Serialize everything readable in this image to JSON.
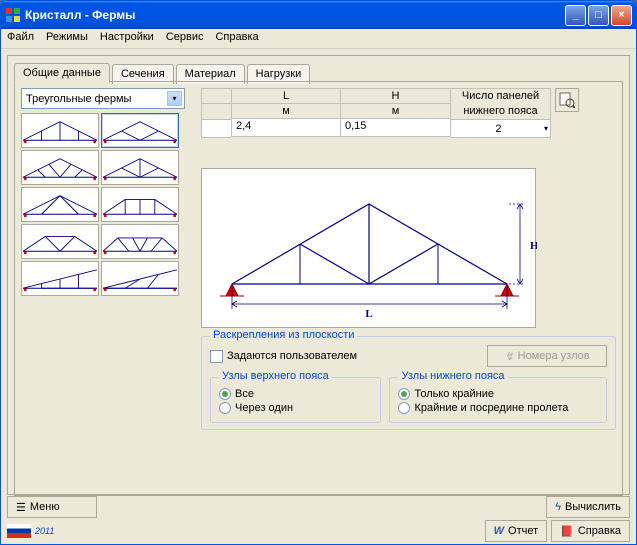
{
  "window": {
    "title": "Кристалл - Фермы"
  },
  "menu": {
    "file": "Файл",
    "modes": "Режимы",
    "settings": "Настройки",
    "service": "Сервис",
    "help": "Справка"
  },
  "tabs": {
    "general": "Общие данные",
    "sections": "Сечения",
    "material": "Материал",
    "loads": "Нагрузки"
  },
  "combo": {
    "value": "Треугольные фермы"
  },
  "table": {
    "L_header": "L",
    "L_unit": "м",
    "L_value": "2,4",
    "H_header": "H",
    "H_unit": "м",
    "H_value": "0,15",
    "panels_header1": "Число панелей",
    "panels_header2": "нижнего пояса",
    "panels_value": "2"
  },
  "bracing": {
    "legend": "Раскрепления из плоскости",
    "user_defined": "Задаются пользователем",
    "nodes_btn": "Номера узлов",
    "top_legend": "Узлы верхнего пояса",
    "top_all": "Все",
    "top_alt": "Через один",
    "bot_legend": "Узлы нижнего пояса",
    "bot_ends": "Только крайние",
    "bot_mid": "Крайние и посредине пролета"
  },
  "footer": {
    "menu": "Меню",
    "calc": "Вычислить",
    "report": "Отчет",
    "help": "Справка",
    "year": "2011"
  },
  "diagram": {
    "L_label": "L",
    "H_label": "H"
  },
  "thumbs": [
    [
      [
        0,
        30,
        50,
        5,
        100,
        30
      ],
      [
        50,
        5,
        50,
        30
      ],
      [
        25,
        17.5,
        25,
        30
      ],
      [
        75,
        17.5,
        75,
        30
      ]
    ],
    [
      [
        0,
        30,
        50,
        5,
        100,
        30
      ],
      [
        25,
        17.5,
        50,
        30
      ],
      [
        75,
        17.5,
        50,
        30
      ]
    ],
    [
      [
        0,
        30,
        50,
        5,
        100,
        30
      ],
      [
        20,
        20,
        30,
        30
      ],
      [
        35,
        12.5,
        50,
        30
      ],
      [
        65,
        12.5,
        50,
        30
      ],
      [
        80,
        20,
        70,
        30
      ]
    ],
    [
      [
        0,
        30,
        50,
        5,
        100,
        30
      ],
      [
        50,
        5,
        50,
        30
      ],
      [
        25,
        17.5,
        50,
        30
      ],
      [
        75,
        17.5,
        50,
        30
      ]
    ],
    [
      [
        0,
        30,
        50,
        5,
        100,
        30
      ],
      [
        50,
        5,
        25,
        30
      ],
      [
        50,
        5,
        75,
        30
      ]
    ],
    [
      [
        0,
        30,
        30,
        10,
        70,
        10,
        100,
        30
      ],
      [
        30,
        10,
        30,
        30
      ],
      [
        70,
        10,
        70,
        30
      ],
      [
        50,
        10,
        50,
        30
      ]
    ],
    [
      [
        0,
        30,
        30,
        10,
        70,
        10,
        100,
        30
      ],
      [
        30,
        10,
        50,
        30
      ],
      [
        70,
        10,
        50,
        30
      ]
    ],
    [
      [
        0,
        30,
        20,
        12,
        80,
        12,
        100,
        30
      ],
      [
        20,
        12,
        35,
        30
      ],
      [
        80,
        12,
        65,
        30
      ],
      [
        40,
        12,
        50,
        30
      ],
      [
        60,
        12,
        50,
        30
      ]
    ],
    [
      [
        0,
        30,
        100,
        5
      ],
      [
        25,
        23.75,
        25,
        30,
        100,
        30
      ],
      [
        50,
        17.5,
        50,
        30
      ],
      [
        75,
        11.25,
        75,
        30
      ]
    ],
    [
      [
        0,
        30,
        100,
        5
      ],
      [
        0,
        30,
        100,
        30
      ],
      [
        30,
        30,
        50,
        17.5
      ],
      [
        60,
        30,
        75,
        11.25
      ]
    ]
  ]
}
